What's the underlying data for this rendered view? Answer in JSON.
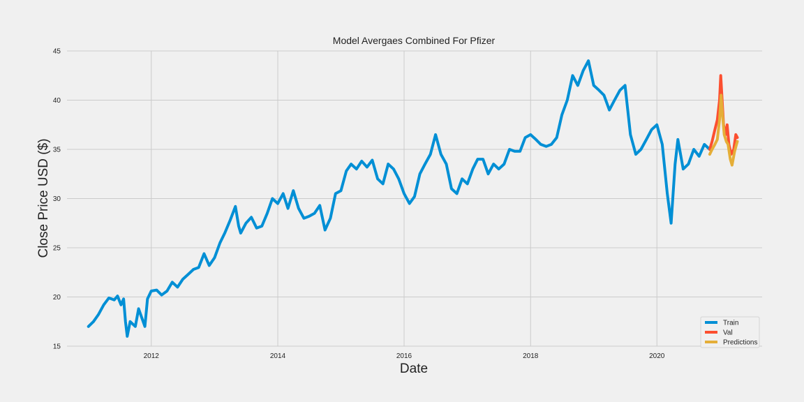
{
  "chart_data": {
    "type": "line",
    "title": "Model Avergaes Combined For Pfizer",
    "xlabel": "Date",
    "ylabel": "Close Price USD ($)",
    "xlim": [
      "2010-09-01",
      "2021-08-31"
    ],
    "ylim": [
      15,
      45
    ],
    "x_ticks": [
      "2012",
      "2014",
      "2016",
      "2018",
      "2020"
    ],
    "y_ticks": [
      "15",
      "20",
      "25",
      "30",
      "35",
      "40",
      "45"
    ],
    "grid": true,
    "legend_position": "bottom-right",
    "series": [
      {
        "name": "Train",
        "color": "#008fd5",
        "points": [
          [
            "2011-01-03",
            17.0
          ],
          [
            "2011-02-01",
            17.5
          ],
          [
            "2011-03-01",
            18.2
          ],
          [
            "2011-04-01",
            19.2
          ],
          [
            "2011-05-01",
            19.9
          ],
          [
            "2011-06-01",
            19.7
          ],
          [
            "2011-06-20",
            20.1
          ],
          [
            "2011-07-10",
            19.2
          ],
          [
            "2011-07-25",
            19.8
          ],
          [
            "2011-08-05",
            17.5
          ],
          [
            "2011-08-15",
            16.0
          ],
          [
            "2011-09-01",
            17.5
          ],
          [
            "2011-10-01",
            17.0
          ],
          [
            "2011-10-20",
            18.8
          ],
          [
            "2011-11-25",
            17.0
          ],
          [
            "2011-12-10",
            19.8
          ],
          [
            "2012-01-01",
            20.6
          ],
          [
            "2012-02-01",
            20.7
          ],
          [
            "2012-03-01",
            20.2
          ],
          [
            "2012-04-01",
            20.6
          ],
          [
            "2012-05-01",
            21.5
          ],
          [
            "2012-06-01",
            21.0
          ],
          [
            "2012-07-01",
            21.8
          ],
          [
            "2012-08-01",
            22.3
          ],
          [
            "2012-09-01",
            22.8
          ],
          [
            "2012-10-01",
            23.0
          ],
          [
            "2012-11-01",
            24.4
          ],
          [
            "2012-12-01",
            23.2
          ],
          [
            "2013-01-01",
            24.0
          ],
          [
            "2013-02-01",
            25.5
          ],
          [
            "2013-03-01",
            26.5
          ],
          [
            "2013-04-01",
            27.8
          ],
          [
            "2013-05-01",
            29.2
          ],
          [
            "2013-05-20",
            27.2
          ],
          [
            "2013-06-01",
            26.5
          ],
          [
            "2013-07-01",
            27.5
          ],
          [
            "2013-08-01",
            28.1
          ],
          [
            "2013-09-01",
            27.0
          ],
          [
            "2013-10-01",
            27.2
          ],
          [
            "2013-11-01",
            28.5
          ],
          [
            "2013-12-01",
            30.0
          ],
          [
            "2014-01-01",
            29.5
          ],
          [
            "2014-02-01",
            30.5
          ],
          [
            "2014-03-01",
            29.0
          ],
          [
            "2014-04-01",
            30.8
          ],
          [
            "2014-05-01",
            29.0
          ],
          [
            "2014-06-01",
            28.0
          ],
          [
            "2014-07-01",
            28.2
          ],
          [
            "2014-08-01",
            28.5
          ],
          [
            "2014-09-01",
            29.3
          ],
          [
            "2014-10-01",
            26.8
          ],
          [
            "2014-11-01",
            28.0
          ],
          [
            "2014-12-01",
            30.5
          ],
          [
            "2015-01-01",
            30.8
          ],
          [
            "2015-02-01",
            32.8
          ],
          [
            "2015-03-01",
            33.5
          ],
          [
            "2015-04-01",
            33.0
          ],
          [
            "2015-05-01",
            33.8
          ],
          [
            "2015-06-01",
            33.2
          ],
          [
            "2015-07-01",
            33.9
          ],
          [
            "2015-08-01",
            32.0
          ],
          [
            "2015-09-01",
            31.5
          ],
          [
            "2015-10-01",
            33.5
          ],
          [
            "2015-11-01",
            33.0
          ],
          [
            "2015-12-01",
            32.0
          ],
          [
            "2016-01-01",
            30.5
          ],
          [
            "2016-02-01",
            29.5
          ],
          [
            "2016-03-01",
            30.2
          ],
          [
            "2016-04-01",
            32.5
          ],
          [
            "2016-05-01",
            33.5
          ],
          [
            "2016-06-01",
            34.5
          ],
          [
            "2016-07-01",
            36.5
          ],
          [
            "2016-08-01",
            34.5
          ],
          [
            "2016-09-01",
            33.5
          ],
          [
            "2016-10-01",
            31.0
          ],
          [
            "2016-11-01",
            30.5
          ],
          [
            "2016-12-01",
            32.0
          ],
          [
            "2017-01-01",
            31.5
          ],
          [
            "2017-02-01",
            33.0
          ],
          [
            "2017-03-01",
            34.0
          ],
          [
            "2017-04-01",
            34.0
          ],
          [
            "2017-05-01",
            32.5
          ],
          [
            "2017-06-01",
            33.5
          ],
          [
            "2017-07-01",
            33.0
          ],
          [
            "2017-08-01",
            33.5
          ],
          [
            "2017-09-01",
            35.0
          ],
          [
            "2017-10-01",
            34.8
          ],
          [
            "2017-11-01",
            34.8
          ],
          [
            "2017-12-01",
            36.2
          ],
          [
            "2018-01-01",
            36.5
          ],
          [
            "2018-02-01",
            36.0
          ],
          [
            "2018-03-01",
            35.5
          ],
          [
            "2018-04-01",
            35.3
          ],
          [
            "2018-05-01",
            35.5
          ],
          [
            "2018-06-01",
            36.2
          ],
          [
            "2018-07-01",
            38.5
          ],
          [
            "2018-08-01",
            40.0
          ],
          [
            "2018-09-01",
            42.5
          ],
          [
            "2018-10-01",
            41.5
          ],
          [
            "2018-11-01",
            43.0
          ],
          [
            "2018-12-01",
            44.0
          ],
          [
            "2019-01-01",
            41.5
          ],
          [
            "2019-02-01",
            41.0
          ],
          [
            "2019-03-01",
            40.5
          ],
          [
            "2019-04-01",
            39.0
          ],
          [
            "2019-05-01",
            40.0
          ],
          [
            "2019-06-01",
            41.0
          ],
          [
            "2019-07-01",
            41.5
          ],
          [
            "2019-08-01",
            36.5
          ],
          [
            "2019-09-01",
            34.5
          ],
          [
            "2019-10-01",
            35.0
          ],
          [
            "2019-11-01",
            36.0
          ],
          [
            "2019-12-01",
            37.0
          ],
          [
            "2020-01-01",
            37.5
          ],
          [
            "2020-02-01",
            35.5
          ],
          [
            "2020-03-01",
            30.5
          ],
          [
            "2020-03-23",
            27.5
          ],
          [
            "2020-04-15",
            33.5
          ],
          [
            "2020-05-01",
            36.0
          ],
          [
            "2020-06-01",
            33.0
          ],
          [
            "2020-07-01",
            33.5
          ],
          [
            "2020-08-01",
            35.0
          ],
          [
            "2020-09-01",
            34.3
          ],
          [
            "2020-10-01",
            35.5
          ],
          [
            "2020-11-01",
            35.0
          ]
        ]
      },
      {
        "name": "Val",
        "color": "#fc4f30",
        "points": [
          [
            "2020-11-01",
            35.0
          ],
          [
            "2020-11-15",
            35.8
          ],
          [
            "2020-12-01",
            37.0
          ],
          [
            "2020-12-15",
            38.0
          ],
          [
            "2020-12-28",
            40.0
          ],
          [
            "2021-01-04",
            42.5
          ],
          [
            "2021-01-12",
            40.0
          ],
          [
            "2021-01-20",
            37.5
          ],
          [
            "2021-02-01",
            36.5
          ],
          [
            "2021-02-10",
            37.5
          ],
          [
            "2021-02-20",
            35.5
          ],
          [
            "2021-03-05",
            34.5
          ],
          [
            "2021-03-20",
            35.0
          ],
          [
            "2021-04-01",
            36.5
          ],
          [
            "2021-04-10",
            36.2
          ]
        ]
      },
      {
        "name": "Predictions",
        "color": "#e5ae38",
        "points": [
          [
            "2020-11-01",
            34.5
          ],
          [
            "2020-11-15",
            35.0
          ],
          [
            "2020-12-01",
            35.5
          ],
          [
            "2020-12-15",
            36.0
          ],
          [
            "2020-12-28",
            38.0
          ],
          [
            "2021-01-06",
            40.5
          ],
          [
            "2021-01-14",
            38.5
          ],
          [
            "2021-01-24",
            36.5
          ],
          [
            "2021-02-05",
            35.8
          ],
          [
            "2021-02-15",
            35.5
          ],
          [
            "2021-02-28",
            34.0
          ],
          [
            "2021-03-10",
            33.4
          ],
          [
            "2021-03-25",
            34.8
          ],
          [
            "2021-04-05",
            35.5
          ],
          [
            "2021-04-10",
            35.8
          ]
        ]
      }
    ]
  }
}
